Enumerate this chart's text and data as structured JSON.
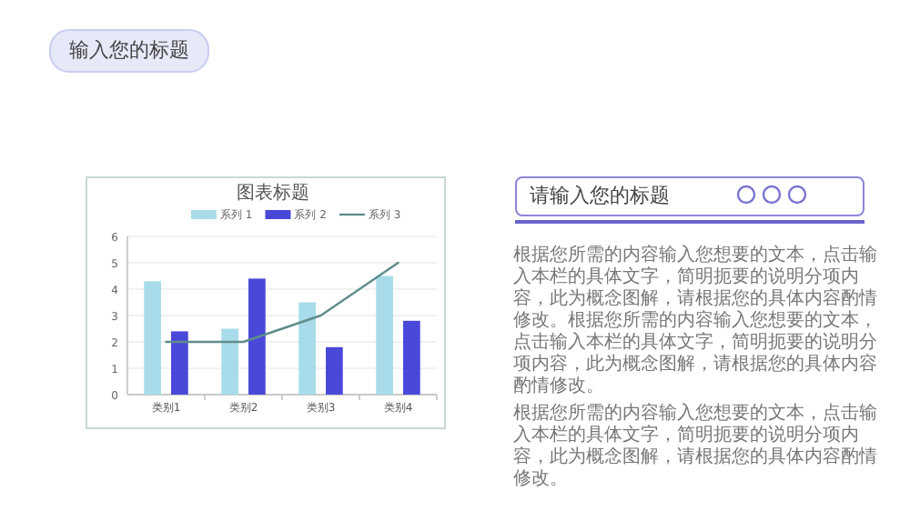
{
  "chart_data": {
    "type": "bar",
    "title": "图表标题",
    "categories": [
      "类别1",
      "类别2",
      "类别3",
      "类别4"
    ],
    "series": [
      {
        "name": "系列 1",
        "color": "#a8dcea",
        "values": [
          4.3,
          2.5,
          3.5,
          4.5
        ]
      },
      {
        "name": "系列 2",
        "color": "#4a48d8",
        "values": [
          2.4,
          4.4,
          1.8,
          2.8
        ]
      },
      {
        "name": "系列 3",
        "color": "#5f8c8c",
        "type": "line",
        "values": [
          2,
          2,
          3,
          5
        ]
      }
    ],
    "ylim": [
      0,
      6
    ],
    "yticks": [
      0,
      1,
      2,
      3,
      4,
      5,
      6
    ],
    "grid": "y",
    "legend": "top",
    "annotations": [
      "输入您的标题",
      "请输入您的标题",
      "根据您所需的内容输入您想要的文本，点击输入本栏的具体文字，简明扼要的说明分项内容，此为概念图解，请根据您的具体内容酌情修改。根据您所需的内容输入您想要的文本，点击输入本栏的具体文字，简明扼要的说明分项内容，此为概念图解，请根据您的具体内容酌情修改。",
      "根据您所需的内容输入您想要的文本，点击输入本栏的具体文字，简明扼要的说明分项内容，此为概念图解，请根据您的具体内容酌情修改。"
    ]
  }
}
